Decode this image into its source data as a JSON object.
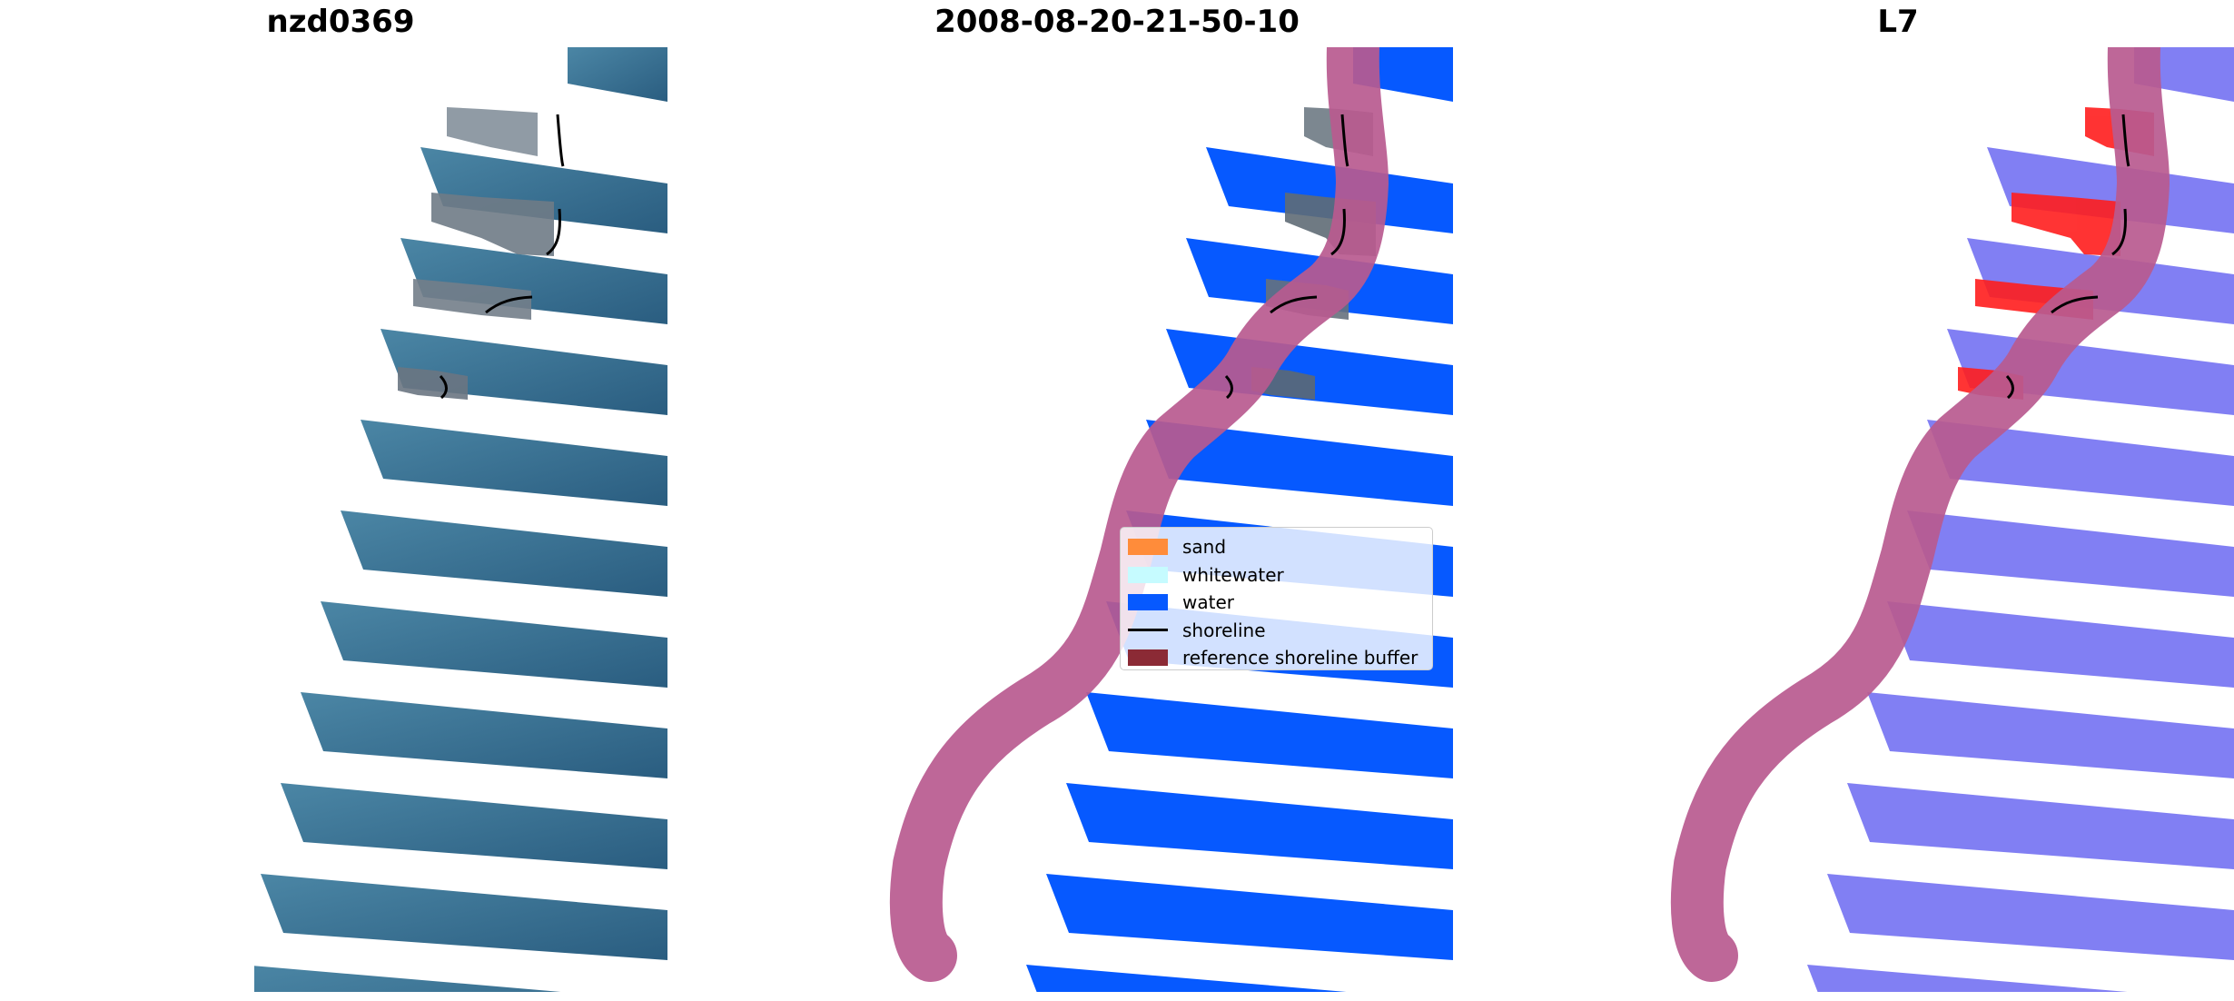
{
  "panels": [
    {
      "title": "nzd0369"
    },
    {
      "title": "2008-08-20-21-50-10"
    },
    {
      "title": "L7"
    }
  ],
  "legend": {
    "items": [
      {
        "label": "sand",
        "color": "#ff8c3a",
        "kind": "patch"
      },
      {
        "label": "whitewater",
        "color": "#c6fbff",
        "kind": "patch"
      },
      {
        "label": "water",
        "color": "#0659ff",
        "kind": "patch"
      },
      {
        "label": "shoreline",
        "color": "#000000",
        "kind": "line"
      },
      {
        "label": "reference shoreline buffer",
        "color": "#8b2a35",
        "kind": "patch"
      }
    ]
  },
  "colors": {
    "rgb_water": "#3a7596",
    "classified_water": "#0659ff",
    "mndwi_water": "#7a78f2",
    "mndwi_land": "#ff1e1e",
    "buffer_overlay": "#b85a8f",
    "shoreline": "#000000"
  }
}
